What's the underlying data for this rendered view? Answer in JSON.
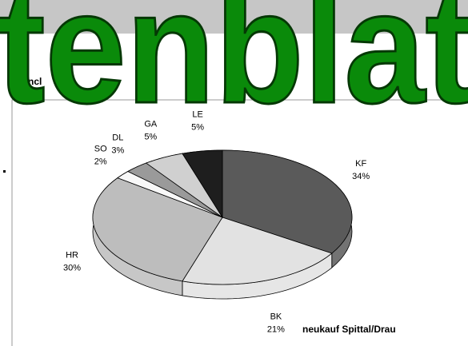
{
  "chart_data": {
    "type": "pie",
    "categories": [
      "KF",
      "BK",
      "HR",
      "SO",
      "DL",
      "GA",
      "LE"
    ],
    "values": [
      34,
      21,
      30,
      2,
      3,
      5,
      5
    ],
    "value_labels": [
      "34%",
      "21%",
      "30%",
      "2%",
      "3%",
      "5%",
      "5%"
    ],
    "colors": [
      "#5a5a5a",
      "#e2e2e2",
      "#bdbdbd",
      "#f8f8f8",
      "#9a9a9a",
      "#d0d0d0",
      "#1e1e1e"
    ],
    "caption": "neukauf Spittal/Drau"
  },
  "wordart": "tenblat",
  "fragments": [
    "ncl",
    ":"
  ]
}
